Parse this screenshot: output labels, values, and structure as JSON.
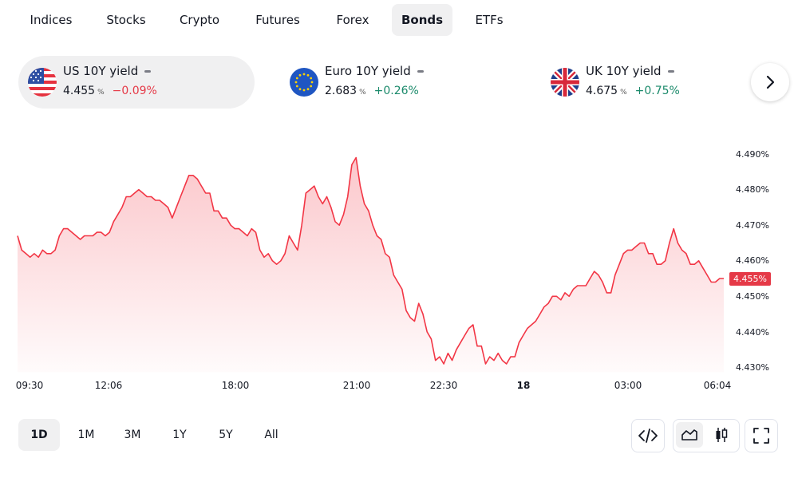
{
  "tabs": [
    {
      "label": "Indices",
      "active": false
    },
    {
      "label": "Stocks",
      "active": false
    },
    {
      "label": "Crypto",
      "active": false
    },
    {
      "label": "Futures",
      "active": false
    },
    {
      "label": "Forex",
      "active": false
    },
    {
      "label": "Bonds",
      "active": true
    },
    {
      "label": "ETFs",
      "active": false
    }
  ],
  "cards": [
    {
      "name": "US 10Y yield",
      "value": "4.455",
      "unit": "%",
      "change": "−0.09%",
      "direction": "down",
      "flag": "us-flag-icon",
      "selected": true
    },
    {
      "name": "Euro 10Y yield",
      "value": "2.683",
      "unit": "%",
      "change": "+0.26%",
      "direction": "up",
      "flag": "eu-flag-icon",
      "selected": false
    },
    {
      "name": "UK 10Y yield",
      "value": "4.675",
      "unit": "%",
      "change": "+0.75%",
      "direction": "up",
      "flag": "uk-flag-icon",
      "selected": false
    }
  ],
  "next_button": {
    "icon": "chevron-right-icon"
  },
  "last_value_label": "4.455%",
  "ranges": [
    {
      "label": "1D",
      "active": true
    },
    {
      "label": "1M",
      "active": false
    },
    {
      "label": "3M",
      "active": false
    },
    {
      "label": "1Y",
      "active": false
    },
    {
      "label": "5Y",
      "active": false
    },
    {
      "label": "All",
      "active": false
    }
  ],
  "tools": {
    "embed_icon": "code-icon",
    "area_icon": "area-chart-icon",
    "candles_icon": "candlestick-icon",
    "fullscreen_icon": "fullscreen-icon",
    "active_style": "area"
  },
  "colors": {
    "line": "#f23645",
    "negative": "#e53947",
    "positive": "#1b8a6b",
    "active_bg": "#f0f0f1"
  },
  "chart_data": {
    "type": "area",
    "title": "",
    "xlabel": "",
    "ylabel": "",
    "x_ticks": [
      "09:30",
      "12:06",
      "18:00",
      "21:00",
      "22:30",
      "18",
      "03:00",
      "06:04"
    ],
    "y_ticks": [
      "4.430%",
      "4.440%",
      "4.450%",
      "4.460%",
      "4.470%",
      "4.480%",
      "4.490%"
    ],
    "ylim": [
      4.428,
      4.493
    ],
    "series": [
      {
        "values": [
          4.467,
          4.463,
          4.462,
          4.461,
          4.462,
          4.461,
          4.463,
          4.462,
          4.462,
          4.463,
          4.467,
          4.469,
          4.469,
          4.468,
          4.467,
          4.466,
          4.467,
          4.467,
          4.467,
          4.468,
          4.468,
          4.467,
          4.468,
          4.471,
          4.473,
          4.475,
          4.478,
          4.478,
          4.479,
          4.48,
          4.479,
          4.478,
          4.478,
          4.477,
          4.477,
          4.476,
          4.475,
          4.472,
          4.475,
          4.478,
          4.481,
          4.484,
          4.484,
          4.483,
          4.481,
          4.479,
          4.479,
          4.474,
          4.474,
          4.472,
          4.472,
          4.47,
          4.469,
          4.469,
          4.468,
          4.467,
          4.469,
          4.468,
          4.463,
          4.461,
          4.462,
          4.46,
          4.459,
          4.46,
          4.462,
          4.467,
          4.465,
          4.463,
          4.47,
          4.479,
          4.48,
          4.481,
          4.478,
          4.476,
          4.478,
          4.475,
          4.471,
          4.47,
          4.473,
          4.478,
          4.487,
          4.489,
          4.481,
          4.476,
          4.474,
          4.47,
          4.467,
          4.466,
          4.462,
          4.461,
          4.456,
          4.454,
          4.452,
          4.446,
          4.444,
          4.443,
          4.448,
          4.445,
          4.44,
          4.438,
          4.432,
          4.433,
          4.431,
          4.434,
          4.432,
          4.435,
          4.437,
          4.439,
          4.441,
          4.442,
          4.436,
          4.436,
          4.431,
          4.433,
          4.432,
          4.434,
          4.432,
          4.431,
          4.433,
          4.433,
          4.437,
          4.439,
          4.441,
          4.442,
          4.443,
          4.445,
          4.447,
          4.448,
          4.45,
          4.45,
          4.449,
          4.451,
          4.45,
          4.452,
          4.453,
          4.453,
          4.453,
          4.455,
          4.457,
          4.456,
          4.454,
          4.451,
          4.451,
          4.456,
          4.459,
          4.462,
          4.463,
          4.463,
          4.464,
          4.465,
          4.465,
          4.462,
          4.462,
          4.459,
          4.459,
          4.46,
          4.465,
          4.469,
          4.465,
          4.463,
          4.462,
          4.459,
          4.459,
          4.46,
          4.458,
          4.456,
          4.454,
          4.454,
          4.455,
          4.455
        ]
      }
    ]
  }
}
